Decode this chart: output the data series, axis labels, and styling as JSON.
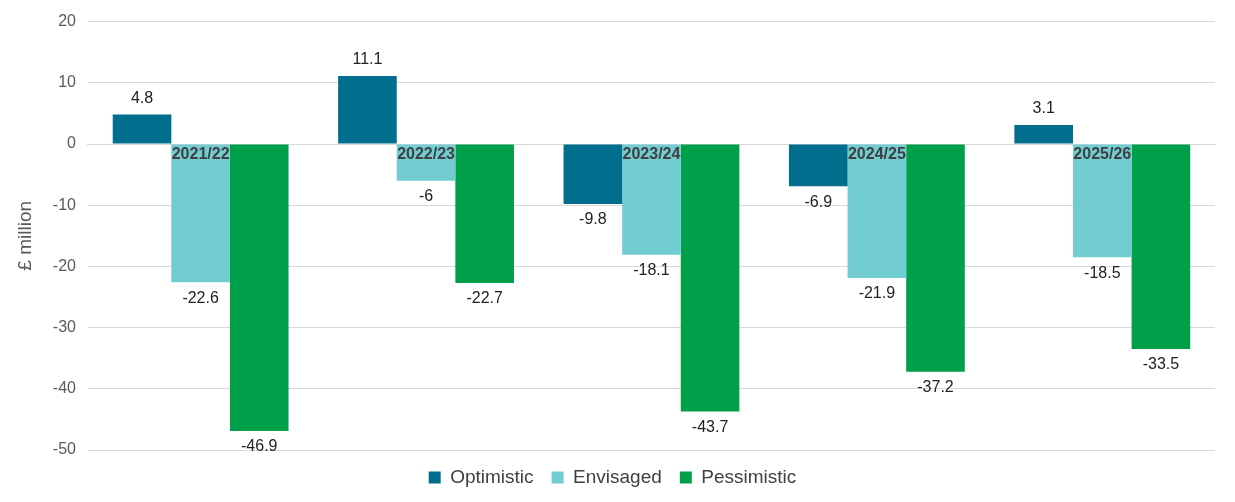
{
  "chart_data": {
    "type": "bar",
    "ylabel": "£ million",
    "categories": [
      "2021/22",
      "2022/23",
      "2023/24",
      "2024/25",
      "2025/26"
    ],
    "series": [
      {
        "name": "Optimistic",
        "color": "#006e8c",
        "values": [
          4.8,
          11.1,
          -9.8,
          -6.9,
          3.1
        ]
      },
      {
        "name": "Envisaged",
        "color": "#72cdd3",
        "values": [
          -22.6,
          -6,
          -18.1,
          -21.9,
          -18.5
        ]
      },
      {
        "name": "Pessimistic",
        "color": "#00a04b",
        "values": [
          -46.9,
          -22.7,
          -43.7,
          -37.2,
          -33.5
        ]
      }
    ],
    "ylim": [
      -50,
      20
    ],
    "yticks": [
      -50,
      -40,
      -30,
      -20,
      -10,
      0,
      10,
      20
    ],
    "grid": "y",
    "legend": "bottom",
    "data_labels": true
  }
}
